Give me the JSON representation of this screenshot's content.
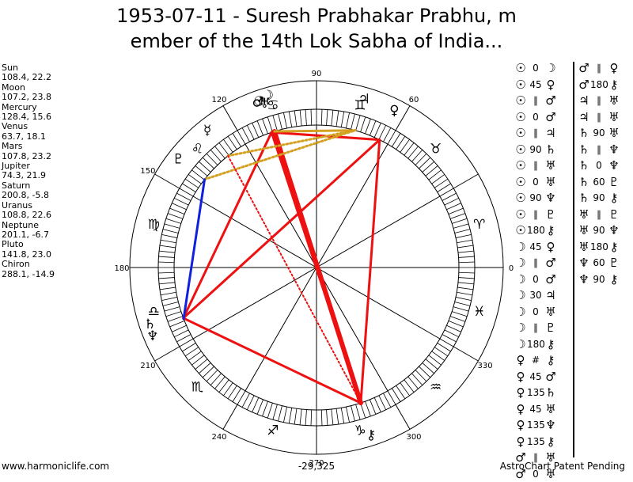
{
  "title_line1": "1953-07-11 - Suresh Prabhakar Prabhu, m",
  "title_line2": "ember of the 14th Lok Sabha of India...",
  "planets": [
    {
      "name": "Sun",
      "value": "108.4, 22.2",
      "glyph": "☉",
      "lon": 108.4
    },
    {
      "name": "Moon",
      "value": "107.2, 23.8",
      "glyph": "☽",
      "lon": 107.2
    },
    {
      "name": "Mercury",
      "value": "128.4, 15.6",
      "glyph": "☿",
      "lon": 128.4
    },
    {
      "name": "Venus",
      "value": "63.7, 18.1",
      "glyph": "♀",
      "lon": 63.7
    },
    {
      "name": "Mars",
      "value": "107.8, 23.2",
      "glyph": "♂",
      "lon": 107.8
    },
    {
      "name": "Jupiter",
      "value": "74.3, 21.9",
      "glyph": "♃",
      "lon": 74.3
    },
    {
      "name": "Saturn",
      "value": "200.8, -5.8",
      "glyph": "♄",
      "lon": 200.8
    },
    {
      "name": "Uranus",
      "value": "108.8, 22.6",
      "glyph": "♅",
      "lon": 108.8
    },
    {
      "name": "Neptune",
      "value": "201.1, -6.7",
      "glyph": "♆",
      "lon": 201.1
    },
    {
      "name": "Pluto",
      "value": "141.8, 23.0",
      "glyph": "♇",
      "lon": 141.8
    },
    {
      "name": "Chiron",
      "value": "288.1, -14.9",
      "glyph": "⚷",
      "lon": 288.1
    }
  ],
  "degree_labels": [
    {
      "text": "90",
      "deg": 90
    },
    {
      "text": "60",
      "deg": 60
    },
    {
      "text": "120",
      "deg": 120
    },
    {
      "text": "150",
      "deg": 150
    },
    {
      "text": "180",
      "deg": 180
    },
    {
      "text": "210",
      "deg": 210
    },
    {
      "text": "240",
      "deg": 240
    },
    {
      "text": "270",
      "deg": 270
    },
    {
      "text": "300",
      "deg": 300
    },
    {
      "text": "330",
      "deg": 330
    },
    {
      "text": "0",
      "deg": 0
    }
  ],
  "zodiac_signs": [
    {
      "glyph": "♈",
      "deg": 15
    },
    {
      "glyph": "♓",
      "deg": 345
    },
    {
      "glyph": "♒",
      "deg": 315
    },
    {
      "glyph": "♑",
      "deg": 285
    },
    {
      "glyph": "♐",
      "deg": 255
    },
    {
      "glyph": "♏",
      "deg": 225
    },
    {
      "glyph": "♎",
      "deg": 195
    },
    {
      "glyph": "♍",
      "deg": 165
    },
    {
      "glyph": "♌",
      "deg": 135
    },
    {
      "glyph": "♋",
      "deg": 105
    },
    {
      "glyph": "♊",
      "deg": 75
    },
    {
      "glyph": "♉",
      "deg": 45
    }
  ],
  "aspect_lines": [
    {
      "p1": 0,
      "p2": 6,
      "style": "red",
      "width": 3
    },
    {
      "p1": 1,
      "p2": 10,
      "style": "red",
      "width": 6
    },
    {
      "p1": 0,
      "p2": 10,
      "style": "red",
      "width": 3
    },
    {
      "p1": 3,
      "p2": 6,
      "style": "red",
      "width": 3
    },
    {
      "p1": 3,
      "p2": 10,
      "style": "red",
      "width": 3
    },
    {
      "p1": 0,
      "p2": 3,
      "style": "red",
      "width": 3
    },
    {
      "p1": 6,
      "p2": 10,
      "style": "red",
      "width": 3
    },
    {
      "p1": 1,
      "p2": 5,
      "style": "gold",
      "width": 3
    },
    {
      "p1": 2,
      "p2": 5,
      "style": "gold-dot",
      "width": 3
    },
    {
      "p1": 9,
      "p2": 5,
      "style": "gold-dot",
      "width": 3
    },
    {
      "p1": 9,
      "p2": 8,
      "style": "blue",
      "width": 3
    },
    {
      "p1": 2,
      "p2": 10,
      "style": "red-dot",
      "width": 2
    }
  ],
  "aspects_col1": [
    {
      "g1": "☉",
      "asp": "0",
      "g2": "☽"
    },
    {
      "g1": "☉",
      "asp": "45",
      "g2": "♀"
    },
    {
      "g1": "☉",
      "asp": "∥",
      "g2": "♂"
    },
    {
      "g1": "☉",
      "asp": "0",
      "g2": "♂"
    },
    {
      "g1": "☉",
      "asp": "∥",
      "g2": "♃"
    },
    {
      "g1": "☉",
      "asp": "90",
      "g2": "♄"
    },
    {
      "g1": "☉",
      "asp": "∥",
      "g2": "♅"
    },
    {
      "g1": "☉",
      "asp": "0",
      "g2": "♅"
    },
    {
      "g1": "☉",
      "asp": "90",
      "g2": "♆"
    },
    {
      "g1": "☉",
      "asp": "∥",
      "g2": "♇"
    },
    {
      "g1": "☉",
      "asp": "180",
      "g2": "⚷"
    },
    {
      "g1": "☽",
      "asp": "45",
      "g2": "♀"
    },
    {
      "g1": "☽",
      "asp": "∥",
      "g2": "♂"
    },
    {
      "g1": "☽",
      "asp": "0",
      "g2": "♂"
    },
    {
      "g1": "☽",
      "asp": "30",
      "g2": "♃"
    },
    {
      "g1": "☽",
      "asp": "0",
      "g2": "♅"
    },
    {
      "g1": "☽",
      "asp": "∥",
      "g2": "♇"
    },
    {
      "g1": "☽",
      "asp": "180",
      "g2": "⚷"
    },
    {
      "g1": "♀",
      "asp": "#",
      "g2": "⚷"
    },
    {
      "g1": "♀",
      "asp": "45",
      "g2": "♂"
    },
    {
      "g1": "♀",
      "asp": "135",
      "g2": "♄"
    },
    {
      "g1": "♀",
      "asp": "45",
      "g2": "♅"
    },
    {
      "g1": "♀",
      "asp": "135",
      "g2": "♆"
    },
    {
      "g1": "♀",
      "asp": "135",
      "g2": "⚷"
    },
    {
      "g1": "♂",
      "asp": "∥",
      "g2": "♅"
    },
    {
      "g1": "♂",
      "asp": "0",
      "g2": "♅"
    }
  ],
  "aspects_col2": [
    {
      "g1": "♂",
      "asp": "∥",
      "g2": "♀"
    },
    {
      "g1": "♂",
      "asp": "180",
      "g2": "⚷"
    },
    {
      "g1": "♃",
      "asp": "∥",
      "g2": "♅"
    },
    {
      "g1": "♃",
      "asp": "∥",
      "g2": "♅"
    },
    {
      "g1": "♄",
      "asp": "90",
      "g2": "♅"
    },
    {
      "g1": "♄",
      "asp": "∥",
      "g2": "♆"
    },
    {
      "g1": "♄",
      "asp": "0",
      "g2": "♆"
    },
    {
      "g1": "♄",
      "asp": "60",
      "g2": "♇"
    },
    {
      "g1": "♄",
      "asp": "90",
      "g2": "⚷"
    },
    {
      "g1": "♅",
      "asp": "∥",
      "g2": "♇"
    },
    {
      "g1": "♅",
      "asp": "90",
      "g2": "♆"
    },
    {
      "g1": "♅",
      "asp": "180",
      "g2": "⚷"
    },
    {
      "g1": "♆",
      "asp": "60",
      "g2": "♇"
    },
    {
      "g1": "♆",
      "asp": "90",
      "g2": "⚷"
    }
  ],
  "footer_left": "www.harmoniclife.com",
  "footer_mid": "-29,325",
  "footer_right": "AstroChart Patent Pending",
  "colors": {
    "red": "#ee1111",
    "gold": "#d4a020",
    "blue": "#1020dd"
  }
}
